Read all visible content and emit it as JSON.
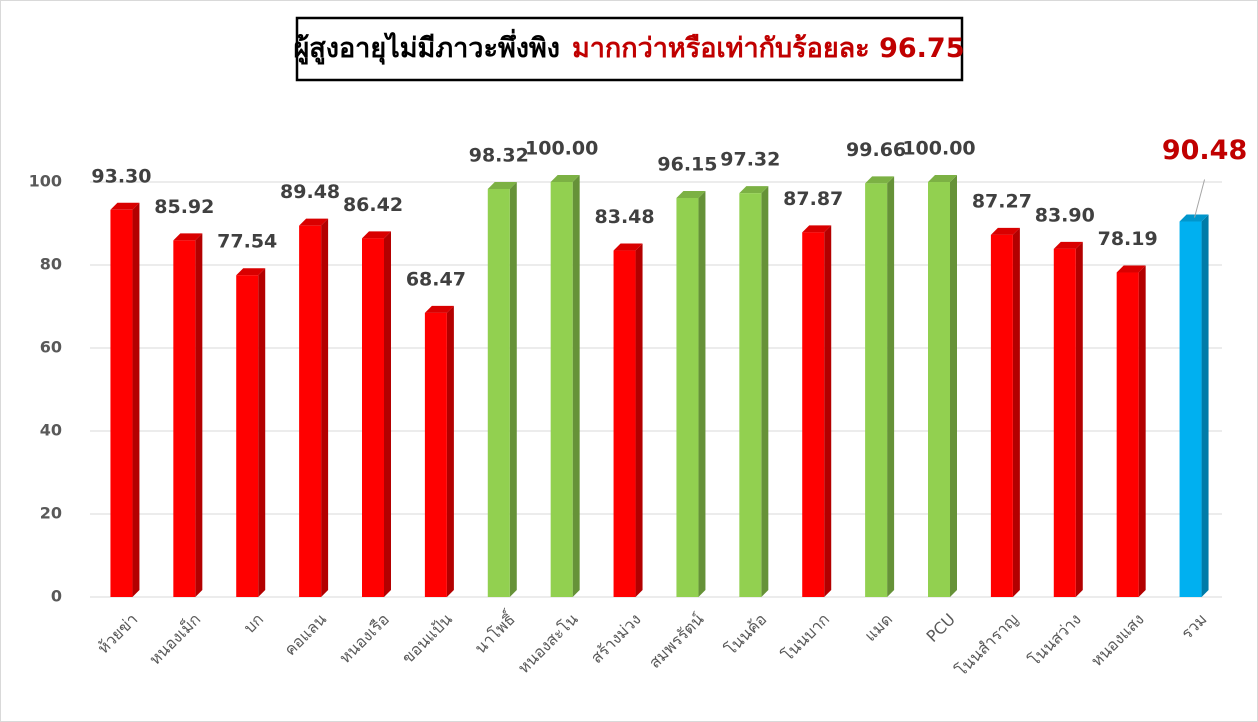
{
  "chart_data": {
    "type": "bar",
    "title": "ผู้สูงอายุไม่มีภาวะพึ่งพิง",
    "title_highlight": "มากกว่าหรือเท่ากับร้อยละ 96.75",
    "categories": [
      "ห้วยข่า",
      "หนองเม็ก",
      "บก",
      "คอแลน",
      "หนองเรือ",
      "ขอนแป้น",
      "นาโพธิ์",
      "หนองสะโน",
      "สร้างม่วง",
      "สมพรรัตน์",
      "โนนค้อ",
      "โนนบาก",
      "แมด",
      "PCU",
      "โนนสำราญ",
      "โนนสว่าง",
      "หนองแสง",
      "รวม"
    ],
    "values": [
      93.3,
      85.92,
      77.54,
      89.48,
      86.42,
      68.47,
      98.32,
      100,
      83.48,
      96.15,
      97.32,
      87.87,
      99.66,
      100,
      87.27,
      83.9,
      78.19,
      90.48
    ],
    "value_labels": [
      "93.30",
      "85.92",
      "77.54",
      "89.48",
      "86.42",
      "68.47",
      "98.32",
      "100.00",
      "83.48",
      "96.15",
      "97.32",
      "87.87",
      "99.66",
      "100.00",
      "87.27",
      "83.90",
      "78.19",
      "90.48"
    ],
    "colors": [
      "#ff0000",
      "#ff0000",
      "#ff0000",
      "#ff0000",
      "#ff0000",
      "#ff0000",
      "#92d050",
      "#92d050",
      "#ff0000",
      "#92d050",
      "#92d050",
      "#ff0000",
      "#92d050",
      "#92d050",
      "#ff0000",
      "#ff0000",
      "#ff0000",
      "#00b0f0"
    ],
    "ylim": [
      0,
      120
    ],
    "yticks": [
      0,
      20,
      40,
      60,
      80,
      100
    ],
    "grid": true
  }
}
